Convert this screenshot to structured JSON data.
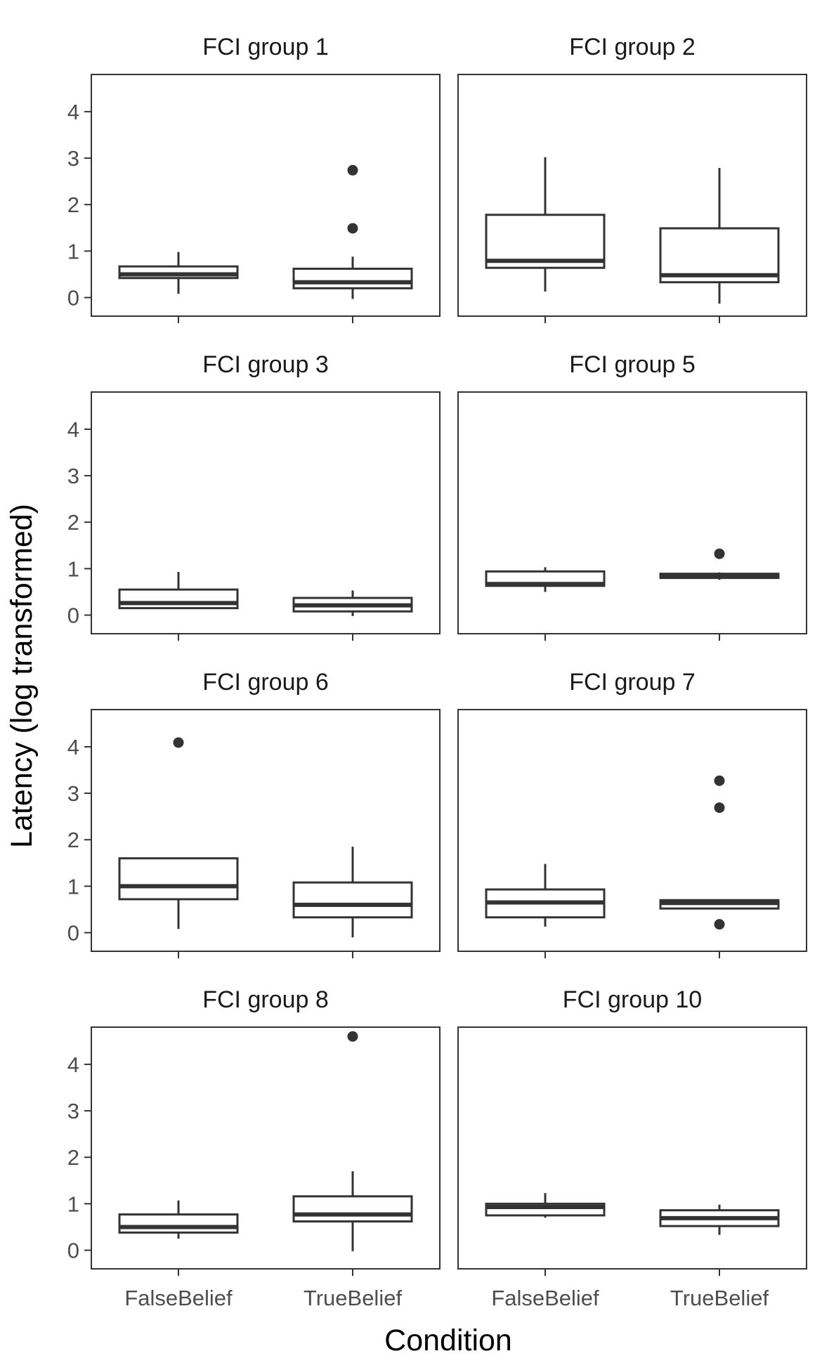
{
  "chart_data": {
    "type": "boxplot",
    "xlabel": "Condition",
    "ylabel": "Latency (log transformed)",
    "categories": [
      "FalseBelief",
      "TrueBelief"
    ],
    "yticks": [
      0,
      1,
      2,
      3,
      4
    ],
    "ylim": [
      -0.4,
      4.8
    ],
    "grid": false,
    "colors": {
      "box": "#333333",
      "outlier": "#333333",
      "panel_border": "#333333"
    },
    "panels": [
      {
        "title": "FCI group 1",
        "boxes": [
          {
            "category": "FalseBelief",
            "whisker_low": 0.08,
            "q1": 0.42,
            "median": 0.5,
            "q3": 0.67,
            "whisker_high": 0.98,
            "outliers": []
          },
          {
            "category": "TrueBelief",
            "whisker_low": -0.03,
            "q1": 0.2,
            "median": 0.33,
            "q3": 0.62,
            "whisker_high": 0.88,
            "outliers": [
              1.49,
              2.74
            ]
          }
        ]
      },
      {
        "title": "FCI group 2",
        "boxes": [
          {
            "category": "FalseBelief",
            "whisker_low": 0.13,
            "q1": 0.64,
            "median": 0.79,
            "q3": 1.78,
            "whisker_high": 3.02,
            "outliers": []
          },
          {
            "category": "TrueBelief",
            "whisker_low": -0.13,
            "q1": 0.33,
            "median": 0.48,
            "q3": 1.49,
            "whisker_high": 2.79,
            "outliers": []
          }
        ]
      },
      {
        "title": "FCI group 3",
        "boxes": [
          {
            "category": "FalseBelief",
            "whisker_low": 0.15,
            "q1": 0.15,
            "median": 0.26,
            "q3": 0.55,
            "whisker_high": 0.93,
            "outliers": []
          },
          {
            "category": "TrueBelief",
            "whisker_low": -0.02,
            "q1": 0.08,
            "median": 0.21,
            "q3": 0.37,
            "whisker_high": 0.53,
            "outliers": []
          }
        ]
      },
      {
        "title": "FCI group 5",
        "boxes": [
          {
            "category": "FalseBelief",
            "whisker_low": 0.5,
            "q1": 0.63,
            "median": 0.67,
            "q3": 0.94,
            "whisker_high": 1.03,
            "outliers": []
          },
          {
            "category": "TrueBelief",
            "whisker_low": 0.76,
            "q1": 0.8,
            "median": 0.85,
            "q3": 0.89,
            "whisker_high": 0.92,
            "outliers": [
              1.32
            ]
          }
        ]
      },
      {
        "title": "FCI group 6",
        "boxes": [
          {
            "category": "FalseBelief",
            "whisker_low": 0.08,
            "q1": 0.72,
            "median": 1.0,
            "q3": 1.6,
            "whisker_high": 1.6,
            "outliers": [
              4.09
            ]
          },
          {
            "category": "TrueBelief",
            "whisker_low": -0.1,
            "q1": 0.33,
            "median": 0.6,
            "q3": 1.08,
            "whisker_high": 1.85,
            "outliers": []
          }
        ]
      },
      {
        "title": "FCI group 7",
        "boxes": [
          {
            "category": "FalseBelief",
            "whisker_low": 0.13,
            "q1": 0.33,
            "median": 0.65,
            "q3": 0.93,
            "whisker_high": 1.48,
            "outliers": []
          },
          {
            "category": "TrueBelief",
            "whisker_low": 0.5,
            "q1": 0.52,
            "median": 0.64,
            "q3": 0.7,
            "whisker_high": 0.72,
            "outliers": [
              0.18,
              2.69,
              3.27
            ]
          }
        ]
      },
      {
        "title": "FCI group 8",
        "boxes": [
          {
            "category": "FalseBelief",
            "whisker_low": 0.25,
            "q1": 0.38,
            "median": 0.5,
            "q3": 0.77,
            "whisker_high": 1.07,
            "outliers": []
          },
          {
            "category": "TrueBelief",
            "whisker_low": -0.02,
            "q1": 0.62,
            "median": 0.77,
            "q3": 1.16,
            "whisker_high": 1.7,
            "outliers": [
              4.6
            ]
          }
        ]
      },
      {
        "title": "FCI group 10",
        "boxes": [
          {
            "category": "FalseBelief",
            "whisker_low": 0.7,
            "q1": 0.75,
            "median": 0.93,
            "q3": 1.0,
            "whisker_high": 1.23,
            "outliers": []
          },
          {
            "category": "TrueBelief",
            "whisker_low": 0.33,
            "q1": 0.52,
            "median": 0.69,
            "q3": 0.86,
            "whisker_high": 0.98,
            "outliers": []
          }
        ]
      }
    ]
  }
}
